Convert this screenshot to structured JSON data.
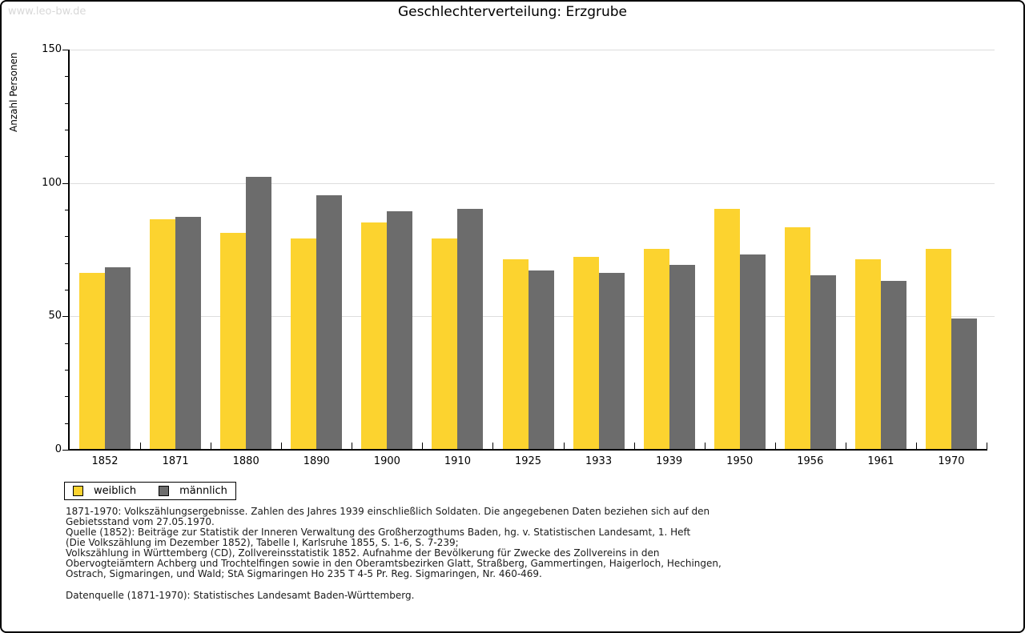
{
  "watermark": "www.leo-bw.de",
  "title": "Geschlechterverteilung: Erzgrube",
  "chart_data": {
    "type": "bar",
    "title": "Geschlechterverteilung: Erzgrube",
    "xlabel": "",
    "ylabel": "Anzahl Personen",
    "ylim": [
      0,
      150
    ],
    "yticks": [
      0,
      50,
      100,
      150
    ],
    "minor_tick_step": 10,
    "grid": true,
    "legend_position": "bottom-left",
    "categories": [
      "1852",
      "1871",
      "1880",
      "1890",
      "1900",
      "1910",
      "1925",
      "1933",
      "1939",
      "1950",
      "1956",
      "1961",
      "1970"
    ],
    "series": [
      {
        "name": "weiblich",
        "color": "#FCD32F",
        "values": [
          66,
          86,
          81,
          79,
          85,
          79,
          71,
          72,
          75,
          90,
          83,
          71,
          75
        ]
      },
      {
        "name": "männlich",
        "color": "#6C6C6C",
        "values": [
          68,
          87,
          102,
          95,
          89,
          90,
          67,
          66,
          69,
          73,
          65,
          63,
          49
        ]
      }
    ]
  },
  "footnotes": {
    "lines": [
      "1871-1970: Volkszählungsergebnisse. Zahlen des Jahres 1939 einschließlich Soldaten. Die angegebenen Daten beziehen sich auf den",
      "Gebietsstand vom 27.05.1970.",
      "Quelle (1852): Beiträge zur Statistik der Inneren Verwaltung des Großherzogthums Baden, hg. v. Statistischen Landesamt, 1. Heft",
      "(Die Volkszählung im Dezember 1852), Tabelle I, Karlsruhe 1855, S. 1-6, S. 7-239;",
      "Volkszählung in Württemberg (CD), Zollvereinsstatistik 1852. Aufnahme der Bevölkerung für Zwecke des Zollvereins in den",
      "Obervogteiämtern Achberg und Trochtelfingen sowie in den Oberamtsbezirken Glatt, Straßberg, Gammertingen, Haigerloch, Hechingen,",
      "Ostrach, Sigmaringen, und Wald; StA Sigmaringen Ho 235 T 4-5 Pr. Reg. Sigmaringen, Nr. 460-469."
    ],
    "datasource": "Datenquelle (1871-1970): Statistisches Landesamt Baden-Württemberg."
  }
}
